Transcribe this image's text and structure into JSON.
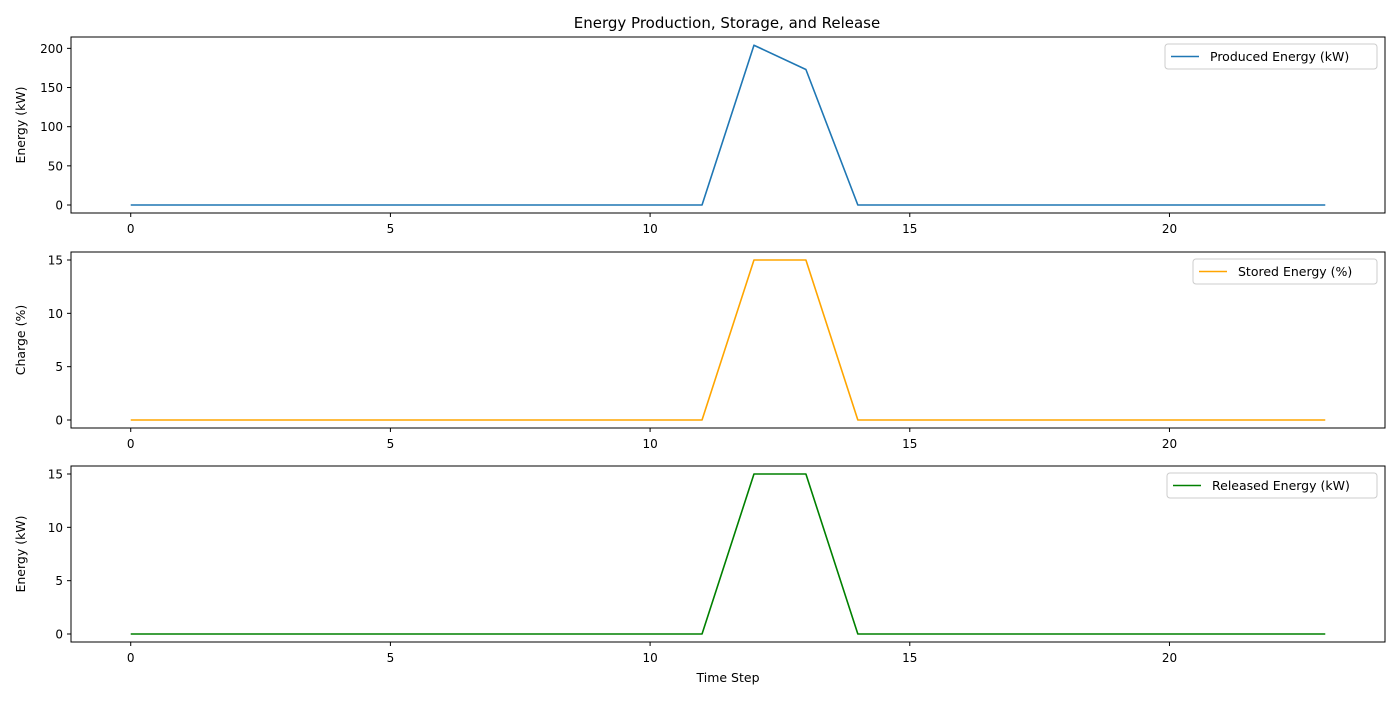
{
  "title": "Energy Production, Storage, and Release",
  "chart_data": [
    {
      "type": "line",
      "title": "Energy Production, Storage, and Release",
      "xlabel": "",
      "ylabel": "Energy (kW)",
      "xlim": [
        -1.15,
        24.15
      ],
      "ylim": [
        -10.2,
        214.5
      ],
      "xticks": [
        0,
        5,
        10,
        15,
        20
      ],
      "yticks": [
        0,
        50,
        100,
        150,
        200
      ],
      "grid": false,
      "legend_position": "upper right",
      "series": [
        {
          "name": "Produced Energy (kW)",
          "color": "#1f77b4",
          "x": [
            0,
            1,
            2,
            3,
            4,
            5,
            6,
            7,
            8,
            9,
            10,
            11,
            12,
            13,
            14,
            15,
            16,
            17,
            18,
            19,
            20,
            21,
            22,
            23
          ],
          "y": [
            0,
            0,
            0,
            0,
            0,
            0,
            0,
            0,
            0,
            0,
            0,
            0,
            204,
            173,
            0,
            0,
            0,
            0,
            0,
            0,
            0,
            0,
            0,
            0
          ]
        }
      ]
    },
    {
      "type": "line",
      "title": "",
      "xlabel": "",
      "ylabel": "Charge (%)",
      "xlim": [
        -1.15,
        24.15
      ],
      "ylim": [
        -0.75,
        15.75
      ],
      "xticks": [
        0,
        5,
        10,
        15,
        20
      ],
      "yticks": [
        0,
        5,
        10,
        15
      ],
      "grid": false,
      "legend_position": "upper right",
      "series": [
        {
          "name": "Stored Energy (%)",
          "color": "#ffa500",
          "x": [
            0,
            1,
            2,
            3,
            4,
            5,
            6,
            7,
            8,
            9,
            10,
            11,
            12,
            13,
            14,
            15,
            16,
            17,
            18,
            19,
            20,
            21,
            22,
            23
          ],
          "y": [
            0,
            0,
            0,
            0,
            0,
            0,
            0,
            0,
            0,
            0,
            0,
            0,
            15,
            15,
            0,
            0,
            0,
            0,
            0,
            0,
            0,
            0,
            0,
            0
          ]
        }
      ]
    },
    {
      "type": "line",
      "title": "",
      "xlabel": "Time Step",
      "ylabel": "Energy (kW)",
      "xlim": [
        -1.15,
        24.15
      ],
      "ylim": [
        -0.75,
        15.75
      ],
      "xticks": [
        0,
        5,
        10,
        15,
        20
      ],
      "yticks": [
        0,
        5,
        10,
        15
      ],
      "grid": false,
      "legend_position": "upper right",
      "series": [
        {
          "name": "Released Energy (kW)",
          "color": "#008000",
          "x": [
            0,
            1,
            2,
            3,
            4,
            5,
            6,
            7,
            8,
            9,
            10,
            11,
            12,
            13,
            14,
            15,
            16,
            17,
            18,
            19,
            20,
            21,
            22,
            23
          ],
          "y": [
            0,
            0,
            0,
            0,
            0,
            0,
            0,
            0,
            0,
            0,
            0,
            0,
            15,
            15,
            0,
            0,
            0,
            0,
            0,
            0,
            0,
            0,
            0,
            0
          ]
        }
      ]
    }
  ]
}
